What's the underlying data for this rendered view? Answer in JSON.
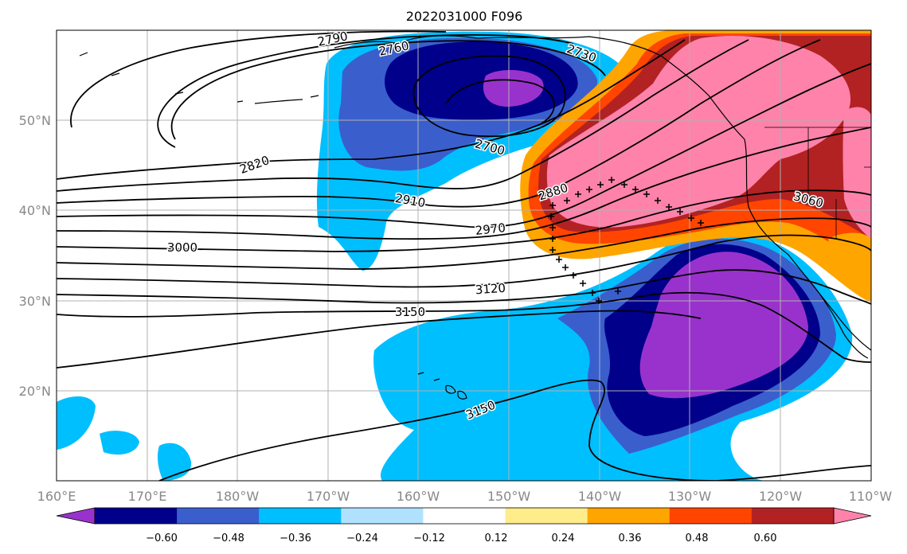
{
  "title": "2022031000 F096",
  "map": {
    "lon_labels": [
      "160°E",
      "170°E",
      "180°W",
      "170°W",
      "160°W",
      "150°W",
      "140°W",
      "130°W",
      "120°W",
      "110°W"
    ],
    "lat_labels": [
      "50°N",
      "40°N",
      "30°N",
      "20°N"
    ],
    "contour_labels": [
      "2790",
      "2760",
      "2730",
      "2700",
      "2820",
      "2880",
      "2910",
      "2970",
      "3000",
      "3060",
      "3120",
      "3150",
      "3150"
    ]
  },
  "colorbar": {
    "ticks": [
      "−0.60",
      "−0.48",
      "−0.36",
      "−0.24",
      "−0.12",
      "0.12",
      "0.24",
      "0.36",
      "0.48",
      "0.60"
    ],
    "colors": [
      "#9932CC",
      "#00008B",
      "#3A5FCD",
      "#00BFFF",
      "#B0E2FF",
      "#FFFFFF",
      "#FFEC8B",
      "#FFA500",
      "#FF4500",
      "#B22222",
      "#FF82AB"
    ]
  }
}
